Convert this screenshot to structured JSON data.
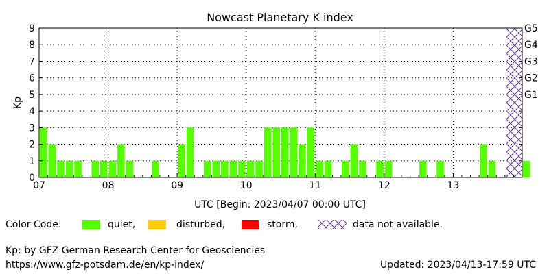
{
  "chart_data": {
    "type": "bar",
    "title": "Nowcast Planetary K index",
    "ylabel": "Kp",
    "xlabel": "UTC [Begin: 2023/04/07 00:00 UTC]",
    "ylim": [
      0,
      9
    ],
    "yticks": [
      "0",
      "1",
      "2",
      "3",
      "4",
      "5",
      "6",
      "7",
      "8",
      "9"
    ],
    "right_axis": [
      {
        "label": "G1",
        "value": 5
      },
      {
        "label": "G2",
        "value": 6
      },
      {
        "label": "G3",
        "value": 7
      },
      {
        "label": "G4",
        "value": 8
      },
      {
        "label": "G5",
        "value": 9
      }
    ],
    "day_labels": [
      "07",
      "08",
      "09",
      "10",
      "11",
      "12",
      "13"
    ],
    "interval_hours": 3,
    "values": [
      3,
      2,
      1,
      1,
      1,
      0,
      1,
      1,
      1,
      2,
      1,
      0,
      0,
      1,
      0,
      0,
      2,
      3,
      0,
      1,
      1,
      1,
      1,
      1,
      1,
      1,
      3,
      3,
      3,
      3,
      2,
      3,
      1,
      1,
      0,
      1,
      2,
      1,
      0,
      1,
      1,
      0,
      0,
      0,
      1,
      0,
      1,
      0,
      0,
      0,
      0,
      2,
      1,
      0,
      0,
      0,
      1
    ],
    "not_available_from_bin": 54,
    "not_available_to_bin": 56,
    "grid": true,
    "bar_color": "#55ff00",
    "na_color": "#663399"
  },
  "legend": {
    "label": "Color Code:",
    "items": [
      {
        "name": "quiet,",
        "color": "#55ff00",
        "kind": "fill"
      },
      {
        "name": "disturbed,",
        "color": "#ffcc00",
        "kind": "fill"
      },
      {
        "name": "storm,",
        "color": "#ff0000",
        "kind": "fill"
      },
      {
        "name": "data not available.",
        "color": "#663399",
        "kind": "hatch"
      }
    ]
  },
  "footer": {
    "credit": "Kp: by GFZ German Research Center for Geosciencies",
    "url": "https://www.gfz-potsdam.de/en/kp-index/",
    "updated": "Updated: 2023/04/13-17:59 UTC"
  }
}
